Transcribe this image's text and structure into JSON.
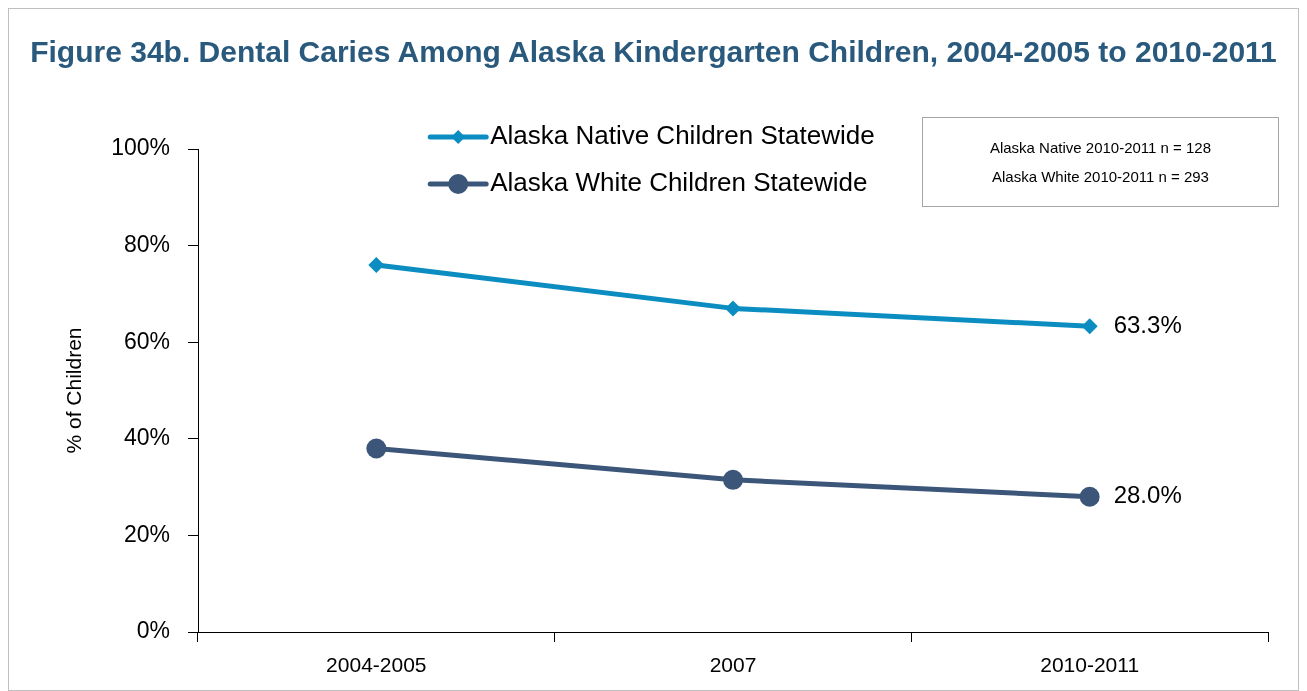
{
  "chart_data": {
    "type": "line",
    "title": "Figure 34b. Dental Caries Among Alaska Kindergarten Children, 2004-2005 to 2010-2011",
    "ylabel": "% of Children",
    "annotations": [
      "Alaska Native 2010-2011 n = 128",
      "Alaska White 2010-2011 n = 293"
    ],
    "categories": [
      "2004-2005",
      "2007",
      "2010-2011"
    ],
    "series": [
      {
        "name": "Alaska Native Children Statewide",
        "color": "#0b8dc1",
        "marker": "diamond",
        "values": [
          76,
          67,
          63.3
        ],
        "value_labels": [
          null,
          null,
          "63.3%"
        ]
      },
      {
        "name": "Alaska White Children Statewide",
        "color": "#3c5679",
        "marker": "circle",
        "values": [
          38,
          31.5,
          28.0
        ],
        "value_labels": [
          null,
          null,
          "28.0%"
        ]
      }
    ],
    "ylim": [
      0,
      100
    ],
    "yticks": [
      {
        "value": 0,
        "label": "0%"
      },
      {
        "value": 20,
        "label": "20%"
      },
      {
        "value": 40,
        "label": "40%"
      },
      {
        "value": 60,
        "label": "60%"
      },
      {
        "value": 80,
        "label": "80%"
      },
      {
        "value": 100,
        "label": "100%"
      }
    ],
    "grid": false,
    "legend": "top",
    "line_style": "solid"
  }
}
